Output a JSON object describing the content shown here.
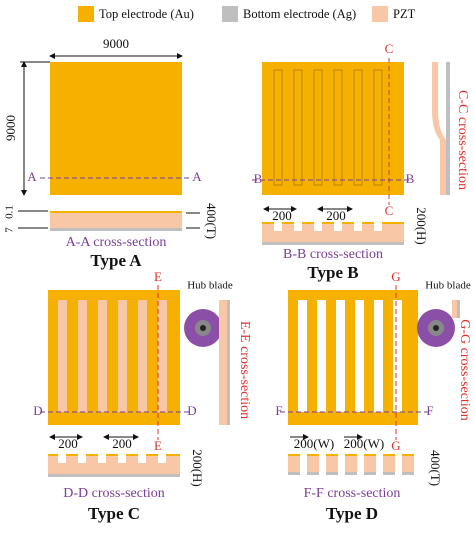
{
  "legend": {
    "items": [
      "Top electrode (Au)",
      "Bottom electrode (Ag)",
      "PZT"
    ]
  },
  "panels": [
    {
      "title": "Type A",
      "section_labels": [
        "A",
        "A"
      ],
      "cross_sections": [
        "A-A cross-section"
      ],
      "dimensions": [
        "9000",
        "9000",
        "0.1",
        "7",
        "400(T)"
      ]
    },
    {
      "title": "Type B",
      "section_labels": [
        "B",
        "B",
        "C",
        "C"
      ],
      "cross_sections": [
        "B-B cross-section",
        "C-C cross-section"
      ],
      "dimensions": [
        "200",
        "200",
        "200(H)"
      ]
    },
    {
      "title": "Type C",
      "section_labels": [
        "D",
        "D",
        "E",
        "E"
      ],
      "hub": "Hub blade",
      "cross_sections": [
        "D-D cross-section",
        "E-E cross-section"
      ],
      "dimensions": [
        "200",
        "200",
        "200(H)"
      ]
    },
    {
      "title": "Type D",
      "section_labels": [
        "F",
        "F",
        "G",
        "G"
      ],
      "hub": "Hub blade",
      "cross_sections": [
        "F-F cross-section",
        "G-G cross-section"
      ],
      "dimensions": [
        "200(W)",
        "200(W)",
        "400(T)"
      ]
    }
  ]
}
